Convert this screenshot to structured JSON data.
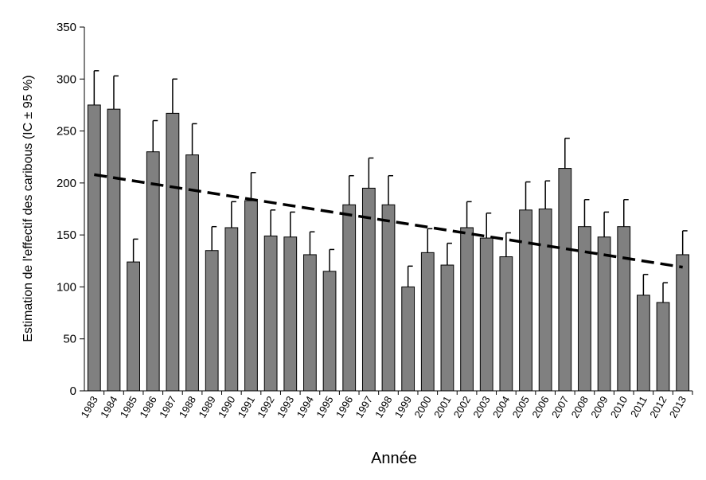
{
  "chart_data": {
    "type": "bar",
    "x_label": "Année",
    "y_label": "Estimation de l'effectif des caribous (IC ± 95 %)",
    "categories": [
      "1983",
      "1984",
      "1985",
      "1986",
      "1987",
      "1988",
      "1989",
      "1990",
      "1991",
      "1992",
      "1993",
      "1994",
      "1995",
      "1996",
      "1997",
      "1998",
      "1999",
      "2000",
      "2001",
      "2002",
      "2003",
      "2004",
      "2005",
      "2006",
      "2007",
      "2008",
      "2009",
      "2010",
      "2011",
      "2012",
      "2013"
    ],
    "values": [
      275,
      271,
      124,
      230,
      267,
      227,
      135,
      157,
      183,
      149,
      148,
      131,
      115,
      179,
      195,
      179,
      100,
      133,
      121,
      157,
      147,
      129,
      174,
      175,
      214,
      158,
      148,
      158,
      92,
      85,
      131
    ],
    "errors": [
      33,
      32,
      22,
      30,
      33,
      30,
      23,
      25,
      27,
      25,
      24,
      22,
      21,
      28,
      29,
      28,
      20,
      23,
      21,
      25,
      24,
      23,
      27,
      27,
      29,
      26,
      24,
      26,
      20,
      19,
      23
    ],
    "color": "#808080",
    "trend": {
      "x": [
        "1983",
        "2013"
      ],
      "values": [
        208,
        119
      ]
    },
    "ylim": [
      0,
      350
    ],
    "yticks": [
      0,
      50,
      100,
      150,
      200,
      250,
      300,
      350
    ],
    "grid": false
  }
}
